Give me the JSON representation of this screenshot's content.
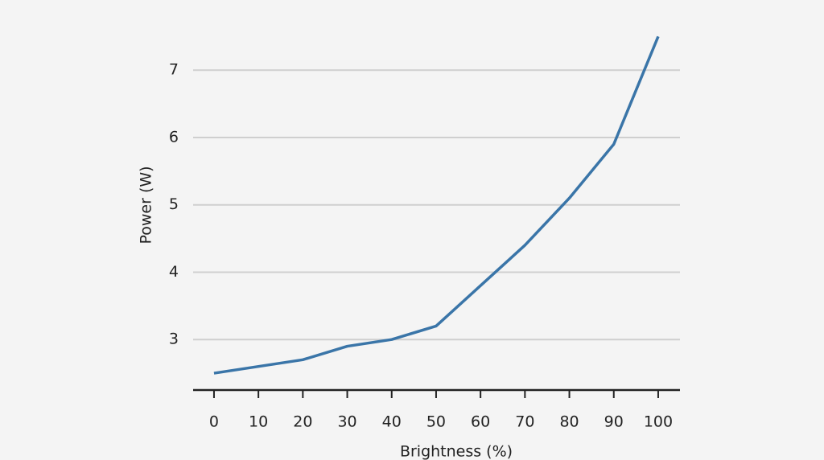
{
  "chart_data": {
    "type": "line",
    "x_label": "Brightness (%)",
    "y_label": "Power (W)",
    "x": [
      0,
      10,
      20,
      30,
      40,
      50,
      60,
      70,
      80,
      90,
      100
    ],
    "series": [
      {
        "name": "Power",
        "color": "#3a75a8",
        "values": [
          2.5,
          2.6,
          2.7,
          2.9,
          3.0,
          3.2,
          3.8,
          4.4,
          5.1,
          5.9,
          7.5
        ]
      }
    ],
    "xlim": [
      -4.7,
      104.9
    ],
    "xticks": [
      0,
      10,
      20,
      30,
      40,
      50,
      60,
      70,
      80,
      90,
      100
    ],
    "ylim": [
      2.25,
      7.6
    ],
    "yticks": [
      3,
      4,
      5,
      6,
      7
    ],
    "grid": true
  }
}
